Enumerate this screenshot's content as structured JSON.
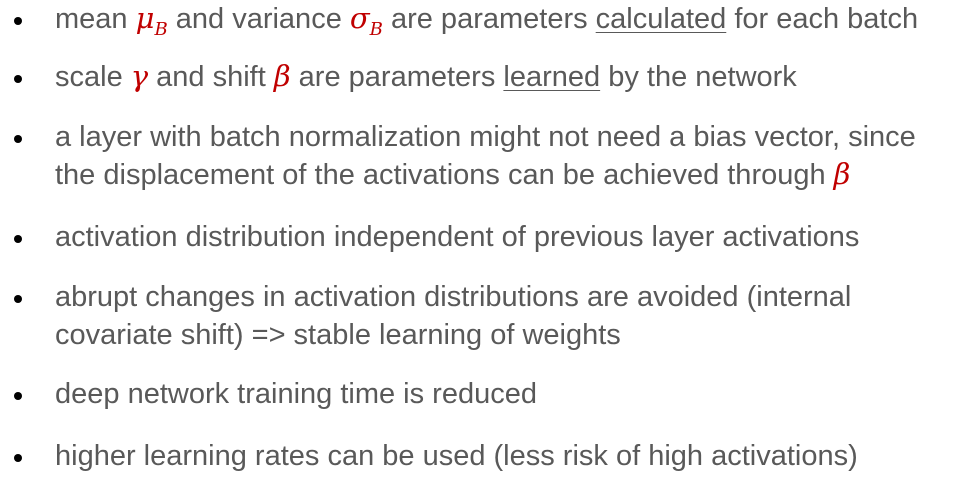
{
  "slide": {
    "colors": {
      "text": "#595959",
      "accent": "#C00000",
      "bullet": "#000000"
    },
    "bullet_icon": "bullet-dot-icon",
    "bullets": [
      {
        "lines": [
          [
            {
              "text": "mean "
            },
            {
              "text": "μ",
              "math": true
            },
            {
              "text": "B",
              "math": true,
              "subscript": true
            },
            {
              "text": " and variance "
            },
            {
              "text": "σ",
              "math": true
            },
            {
              "text": "B",
              "math": true,
              "subscript": true
            },
            {
              "text": " are parameters "
            },
            {
              "text": "calculated",
              "underline": true
            },
            {
              "text": " for each batch"
            }
          ]
        ]
      },
      {
        "lines": [
          [
            {
              "text": "scale "
            },
            {
              "text": "γ",
              "math": true
            },
            {
              "text": " and shift "
            },
            {
              "text": "β",
              "math": true
            },
            {
              "text": " are parameters "
            },
            {
              "text": "learned",
              "underline": true
            },
            {
              "text": " by the network"
            }
          ]
        ]
      },
      {
        "lines": [
          [
            {
              "text": "a layer with batch normalization might not need a bias vector, since"
            }
          ],
          [
            {
              "text": "the displacement of the activations can be achieved through "
            },
            {
              "text": "β",
              "math": true
            }
          ]
        ]
      },
      {
        "lines": [
          [
            {
              "text": "activation distribution independent of previous layer activations"
            }
          ]
        ]
      },
      {
        "lines": [
          [
            {
              "text": "abrupt changes in activation distributions are avoided (internal"
            }
          ],
          [
            {
              "text": "covariate shift) => stable learning of weights"
            }
          ]
        ]
      },
      {
        "lines": [
          [
            {
              "text": "deep network training time is reduced"
            }
          ]
        ]
      },
      {
        "lines": [
          [
            {
              "text": "higher learning rates can be used (less risk of high activations)"
            }
          ]
        ]
      }
    ]
  }
}
